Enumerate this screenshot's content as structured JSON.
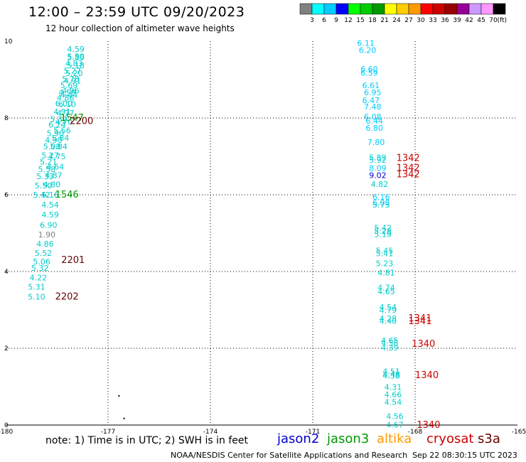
{
  "header": {
    "title": "12:00 – 23:59 UTC 09/20/2023",
    "subtitle": "12 hour collection of altimeter wave heights"
  },
  "footer": {
    "note": "note:  1) Time is in UTC;  2) SWH is in feet",
    "credit": "NOAA/NESDIS Center for Satellite Applications and Research",
    "timestamp": "Sep 22 08:30:15 UTC 2023"
  },
  "satellites": [
    {
      "name": "jason2",
      "color": "#0000cc"
    },
    {
      "name": "jason3",
      "color": "#009900"
    },
    {
      "name": "altika",
      "color": "#ff9900"
    },
    {
      "name": "cryosat",
      "color": "#cc0000"
    },
    {
      "name": "s3a",
      "color": "#660000"
    }
  ],
  "colorbar": {
    "unit": "(ft)",
    "colors": [
      "#808080",
      "#00ffff",
      "#00ccff",
      "#0000ff",
      "#00ff00",
      "#00cc00",
      "#009900",
      "#ffff00",
      "#ffcc00",
      "#ff9900",
      "#ff0000",
      "#cc0000",
      "#990000",
      "#990099",
      "#cc99ff",
      "#ff99ff",
      "#000000"
    ],
    "labels": [
      "3",
      "6",
      "9",
      "12",
      "15",
      "18",
      "21",
      "24",
      "27",
      "30",
      "33",
      "36",
      "39",
      "42",
      "45",
      "70"
    ]
  },
  "chart_data": {
    "type": "scatter",
    "title": "12:00 – 23:59 UTC 09/20/2023",
    "subtitle": "12 hour collection of altimeter wave heights",
    "xlim": [
      -180,
      -165
    ],
    "ylim": [
      0,
      10
    ],
    "x_ticks": [
      "-180",
      "-177",
      "-174",
      "-171",
      "-168",
      "-165"
    ],
    "y_ticks": [
      "0",
      "2",
      "4",
      "6",
      "8",
      "10"
    ],
    "grid": true,
    "swh_labels": [
      {
        "x": -178.2,
        "y": 9.8,
        "text": "4.59",
        "color": "#00cccc"
      },
      {
        "x": -178.2,
        "y": 9.6,
        "text": "5.59",
        "color": "#00cccc"
      },
      {
        "x": -178.2,
        "y": 9.58,
        "text": "5.80",
        "color": "#00cccc"
      },
      {
        "x": -178.25,
        "y": 9.43,
        "text": "4.83",
        "color": "#00cccc"
      },
      {
        "x": -178.2,
        "y": 9.37,
        "text": "5.18",
        "color": "#00cccc"
      },
      {
        "x": -178.3,
        "y": 9.23,
        "text": "5.27",
        "color": "#00cccc"
      },
      {
        "x": -178.25,
        "y": 9.17,
        "text": "5.20",
        "color": "#00cccc"
      },
      {
        "x": -178.35,
        "y": 9.02,
        "text": "5.78",
        "color": "#00cccc"
      },
      {
        "x": -178.3,
        "y": 8.97,
        "text": "4.91",
        "color": "#00cccc"
      },
      {
        "x": -178.4,
        "y": 8.85,
        "text": "5.69",
        "color": "#00cccc"
      },
      {
        "x": -178.35,
        "y": 8.71,
        "text": "4.96",
        "color": "#00cccc"
      },
      {
        "x": -178.45,
        "y": 8.67,
        "text": "4.59",
        "color": "#00cccc"
      },
      {
        "x": -178.4,
        "y": 8.6,
        "text": "4.44",
        "color": "#00cccc"
      },
      {
        "x": -178.5,
        "y": 8.53,
        "text": "4.86",
        "color": "#00cccc"
      },
      {
        "x": -178.55,
        "y": 8.38,
        "text": "6.00",
        "color": "#00cccc"
      },
      {
        "x": -178.45,
        "y": 8.36,
        "text": "6.10",
        "color": "#00cccc"
      },
      {
        "x": -178.6,
        "y": 8.17,
        "text": "4.91",
        "color": "#00cccc"
      },
      {
        "x": -178.5,
        "y": 8.13,
        "text": "4.77",
        "color": "#00cccc"
      },
      {
        "x": -178.7,
        "y": 7.97,
        "text": "5.30",
        "color": "#00cccc"
      },
      {
        "x": -178.55,
        "y": 7.9,
        "text": "4.70",
        "color": "#00cccc"
      },
      {
        "x": -178.4,
        "y": 8.0,
        "text": "1547",
        "color": "#009900"
      },
      {
        "x": -178.12,
        "y": 7.92,
        "text": "2200",
        "color": "#660000"
      },
      {
        "x": -178.75,
        "y": 7.82,
        "text": "6.24",
        "color": "#00cccc"
      },
      {
        "x": -178.6,
        "y": 7.68,
        "text": "5.56",
        "color": "#00cccc"
      },
      {
        "x": -178.8,
        "y": 7.6,
        "text": "5.90",
        "color": "#00cccc"
      },
      {
        "x": -178.65,
        "y": 7.48,
        "text": "5.84",
        "color": "#00cccc"
      },
      {
        "x": -178.85,
        "y": 7.43,
        "text": "4.90",
        "color": "#00cccc"
      },
      {
        "x": -178.9,
        "y": 7.26,
        "text": "5.08",
        "color": "#00cccc"
      },
      {
        "x": -178.7,
        "y": 7.26,
        "text": "5.84",
        "color": "#00cccc"
      },
      {
        "x": -178.75,
        "y": 7.0,
        "text": "4.75",
        "color": "#00cccc"
      },
      {
        "x": -178.95,
        "y": 7.03,
        "text": "5.27",
        "color": "#00cccc"
      },
      {
        "x": -179.0,
        "y": 6.86,
        "text": "5.21",
        "color": "#00cccc"
      },
      {
        "x": -178.8,
        "y": 6.73,
        "text": "4.64",
        "color": "#00cccc"
      },
      {
        "x": -179.05,
        "y": 6.67,
        "text": "5.58",
        "color": "#00cccc"
      },
      {
        "x": -178.85,
        "y": 6.51,
        "text": "4.87",
        "color": "#00cccc"
      },
      {
        "x": -179.1,
        "y": 6.48,
        "text": "5.33",
        "color": "#00cccc"
      },
      {
        "x": -178.9,
        "y": 6.27,
        "text": "4.80",
        "color": "#00cccc"
      },
      {
        "x": -179.15,
        "y": 6.24,
        "text": "5.50",
        "color": "#00cccc"
      },
      {
        "x": -179.2,
        "y": 6.0,
        "text": "5.42",
        "color": "#00cccc"
      },
      {
        "x": -178.95,
        "y": 6.0,
        "text": "5.16",
        "color": "#00cccc"
      },
      {
        "x": -178.55,
        "y": 6.0,
        "text": "1546",
        "color": "#009900"
      },
      {
        "x": -178.95,
        "y": 5.74,
        "text": "4.54",
        "color": "#00cccc"
      },
      {
        "x": -178.95,
        "y": 5.48,
        "text": "4.59",
        "color": "#00cccc"
      },
      {
        "x": -179.0,
        "y": 5.21,
        "text": "6.90",
        "color": "#00cccc"
      },
      {
        "x": -179.05,
        "y": 4.96,
        "text": "1.90",
        "color": "#808080"
      },
      {
        "x": -179.1,
        "y": 4.72,
        "text": "4.86",
        "color": "#00cccc"
      },
      {
        "x": -179.15,
        "y": 4.48,
        "text": "5.52",
        "color": "#00cccc"
      },
      {
        "x": -178.37,
        "y": 4.3,
        "text": "2201",
        "color": "#660000"
      },
      {
        "x": -179.2,
        "y": 4.26,
        "text": "5.06",
        "color": "#00cccc"
      },
      {
        "x": -179.25,
        "y": 4.09,
        "text": "5.32",
        "color": "#00cccc"
      },
      {
        "x": -179.3,
        "y": 3.84,
        "text": "4.22",
        "color": "#00cccc"
      },
      {
        "x": -179.35,
        "y": 3.6,
        "text": "5.31",
        "color": "#00cccc"
      },
      {
        "x": -179.35,
        "y": 3.34,
        "text": "5.10",
        "color": "#00cccc"
      },
      {
        "x": -178.55,
        "y": 3.34,
        "text": "2202",
        "color": "#660000"
      },
      {
        "x": -169.7,
        "y": 9.95,
        "text": "6.11",
        "color": "#00ccff"
      },
      {
        "x": -169.65,
        "y": 9.77,
        "text": "6.20",
        "color": "#00ccff"
      },
      {
        "x": -169.6,
        "y": 9.28,
        "text": "6.60",
        "color": "#00ccff"
      },
      {
        "x": -169.6,
        "y": 9.18,
        "text": "6.59",
        "color": "#00ccff"
      },
      {
        "x": -169.55,
        "y": 8.85,
        "text": "6.61",
        "color": "#00ccff"
      },
      {
        "x": -169.5,
        "y": 8.67,
        "text": "6.95",
        "color": "#00ccff"
      },
      {
        "x": -169.55,
        "y": 8.46,
        "text": "6.47",
        "color": "#00ccff"
      },
      {
        "x": -169.5,
        "y": 8.3,
        "text": "7.48",
        "color": "#00ccff"
      },
      {
        "x": -169.5,
        "y": 8.04,
        "text": "6.08",
        "color": "#00ccff"
      },
      {
        "x": -169.45,
        "y": 7.93,
        "text": "6.44",
        "color": "#00ccff"
      },
      {
        "x": -169.45,
        "y": 7.74,
        "text": "6.80",
        "color": "#00ccff"
      },
      {
        "x": -169.4,
        "y": 7.37,
        "text": "7.80",
        "color": "#00ccff"
      },
      {
        "x": -169.35,
        "y": 6.97,
        "text": "5.89",
        "color": "#00cccc"
      },
      {
        "x": -169.35,
        "y": 6.91,
        "text": "5.92",
        "color": "#00cccc"
      },
      {
        "x": -168.55,
        "y": 6.95,
        "text": "1342",
        "color": "#cc0000"
      },
      {
        "x": -169.35,
        "y": 6.69,
        "text": "8.09",
        "color": "#00ccff"
      },
      {
        "x": -168.55,
        "y": 6.69,
        "text": "1342",
        "color": "#cc0000"
      },
      {
        "x": -169.35,
        "y": 6.51,
        "text": "9.02",
        "color": "#0000cc"
      },
      {
        "x": -168.55,
        "y": 6.53,
        "text": "1342",
        "color": "#cc0000"
      },
      {
        "x": -169.3,
        "y": 6.28,
        "text": "4.82",
        "color": "#00cccc"
      },
      {
        "x": -169.25,
        "y": 5.94,
        "text": "6.16",
        "color": "#00ccff"
      },
      {
        "x": -169.25,
        "y": 5.8,
        "text": "6.08",
        "color": "#00ccff"
      },
      {
        "x": -169.25,
        "y": 5.74,
        "text": "5.73",
        "color": "#00cccc"
      },
      {
        "x": -169.2,
        "y": 5.14,
        "text": "5.42",
        "color": "#00cccc"
      },
      {
        "x": -169.2,
        "y": 5.06,
        "text": "5.28",
        "color": "#00cccc"
      },
      {
        "x": -169.2,
        "y": 4.97,
        "text": "5.19",
        "color": "#00cccc"
      },
      {
        "x": -169.15,
        "y": 4.55,
        "text": "5.45",
        "color": "#00cccc"
      },
      {
        "x": -169.15,
        "y": 4.47,
        "text": "5.41",
        "color": "#00cccc"
      },
      {
        "x": -169.15,
        "y": 4.21,
        "text": "5.23",
        "color": "#00cccc"
      },
      {
        "x": -169.1,
        "y": 3.97,
        "text": "4.81",
        "color": "#00cccc"
      },
      {
        "x": -169.1,
        "y": 3.58,
        "text": "4.74",
        "color": "#00cccc"
      },
      {
        "x": -169.1,
        "y": 3.48,
        "text": "4.65",
        "color": "#00cccc"
      },
      {
        "x": -169.05,
        "y": 3.07,
        "text": "4.54",
        "color": "#00cccc"
      },
      {
        "x": -169.05,
        "y": 2.99,
        "text": "4.79",
        "color": "#00cccc"
      },
      {
        "x": -169.05,
        "y": 2.78,
        "text": "4.28",
        "color": "#00cccc"
      },
      {
        "x": -169.05,
        "y": 2.71,
        "text": "4.40",
        "color": "#00cccc"
      },
      {
        "x": -168.2,
        "y": 2.78,
        "text": "1341",
        "color": "#cc0000"
      },
      {
        "x": -168.2,
        "y": 2.7,
        "text": "1341",
        "color": "#cc0000"
      },
      {
        "x": -169.0,
        "y": 2.2,
        "text": "4.65",
        "color": "#00cccc"
      },
      {
        "x": -169.0,
        "y": 2.14,
        "text": "4.58",
        "color": "#00cccc"
      },
      {
        "x": -169.0,
        "y": 2.02,
        "text": "4.39",
        "color": "#00cccc"
      },
      {
        "x": -168.1,
        "y": 2.11,
        "text": "1340",
        "color": "#cc0000"
      },
      {
        "x": -168.95,
        "y": 1.4,
        "text": "4.51",
        "color": "#00cccc"
      },
      {
        "x": -168.95,
        "y": 1.32,
        "text": "4.48",
        "color": "#00cccc"
      },
      {
        "x": -168.95,
        "y": 1.29,
        "text": "4.38",
        "color": "#00cccc"
      },
      {
        "x": -168.0,
        "y": 1.3,
        "text": "1340",
        "color": "#cc0000"
      },
      {
        "x": -168.9,
        "y": 0.99,
        "text": "4.31",
        "color": "#00cccc"
      },
      {
        "x": -168.9,
        "y": 0.8,
        "text": "4.66",
        "color": "#00cccc"
      },
      {
        "x": -168.9,
        "y": 0.6,
        "text": "4.54",
        "color": "#00cccc"
      },
      {
        "x": -168.85,
        "y": 0.23,
        "text": "4.56",
        "color": "#00cccc"
      },
      {
        "x": -168.85,
        "y": 0.01,
        "text": "4.67",
        "color": "#00cccc"
      },
      {
        "x": -167.95,
        "y": 0.0,
        "text": "1340",
        "color": "#cc0000"
      }
    ],
    "dots": [
      {
        "x": -176.7,
        "y": 0.78
      },
      {
        "x": -176.55,
        "y": 0.19
      }
    ]
  }
}
